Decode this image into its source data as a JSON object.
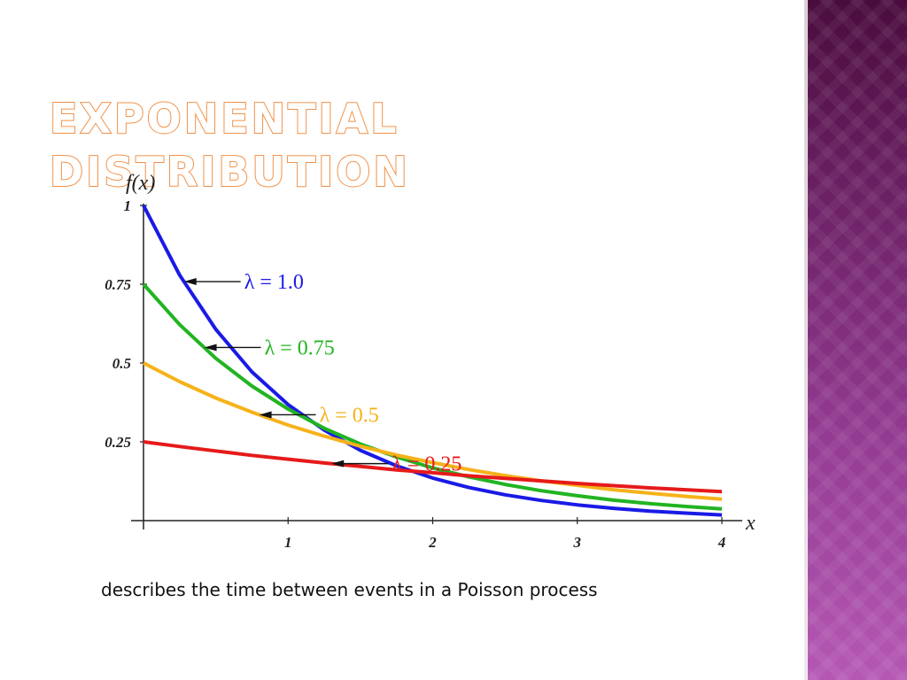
{
  "slide": {
    "title": "Exponential Distribution",
    "caption": "describes the time between events in a Poisson process",
    "colors": {
      "title_outline": "#f0924a",
      "side_band_top": "#4a0c3d",
      "side_band_bottom": "#b558b4"
    }
  },
  "chart_data": {
    "type": "line",
    "title": "",
    "xlabel": "x",
    "ylabel": "f(x)",
    "xlim": [
      0,
      4
    ],
    "ylim": [
      0,
      1
    ],
    "x_ticks": [
      "1",
      "2",
      "3",
      "4"
    ],
    "y_ticks": [
      "0.25",
      "0.5",
      "0.75",
      "1"
    ],
    "grid": false,
    "x": [
      0,
      0.25,
      0.5,
      0.75,
      1,
      1.25,
      1.5,
      1.75,
      2,
      2.25,
      2.5,
      2.75,
      3,
      3.25,
      3.5,
      3.75,
      4
    ],
    "series": [
      {
        "name": "λ = 1.0",
        "color": "#1a1ae6",
        "values": [
          1.0,
          0.779,
          0.607,
          0.472,
          0.368,
          0.287,
          0.223,
          0.174,
          0.135,
          0.105,
          0.082,
          0.064,
          0.05,
          0.039,
          0.03,
          0.024,
          0.018
        ]
      },
      {
        "name": "λ = 0.75",
        "color": "#22b422",
        "values": [
          0.75,
          0.622,
          0.515,
          0.427,
          0.354,
          0.293,
          0.243,
          0.202,
          0.167,
          0.139,
          0.115,
          0.095,
          0.079,
          0.065,
          0.054,
          0.045,
          0.037
        ]
      },
      {
        "name": "λ = 0.5",
        "color": "#f6b21a",
        "values": [
          0.5,
          0.441,
          0.389,
          0.344,
          0.303,
          0.268,
          0.236,
          0.208,
          0.184,
          0.162,
          0.143,
          0.126,
          0.112,
          0.098,
          0.087,
          0.077,
          0.068
        ]
      },
      {
        "name": "λ = 0.25",
        "color": "#e61a1a",
        "values": [
          0.25,
          0.235,
          0.221,
          0.207,
          0.195,
          0.183,
          0.172,
          0.161,
          0.152,
          0.142,
          0.134,
          0.126,
          0.118,
          0.111,
          0.104,
          0.098,
          0.092
        ]
      }
    ],
    "annotations": [
      {
        "text": "λ = 1.0",
        "series": "λ = 1.0",
        "color": "#1a1ae6",
        "x": 0.28,
        "y": 0.84
      },
      {
        "text": "λ = 0.75",
        "series": "λ = 0.75",
        "color": "#22b422",
        "x": 0.42,
        "y": 0.58
      },
      {
        "text": "λ = 0.5",
        "series": "λ = 0.5",
        "color": "#f6b21a",
        "x": 0.8,
        "y": 0.35
      },
      {
        "text": "λ = 0.25",
        "series": "λ = 0.25",
        "color": "#e61a1a",
        "x": 1.3,
        "y": 0.2
      }
    ]
  }
}
